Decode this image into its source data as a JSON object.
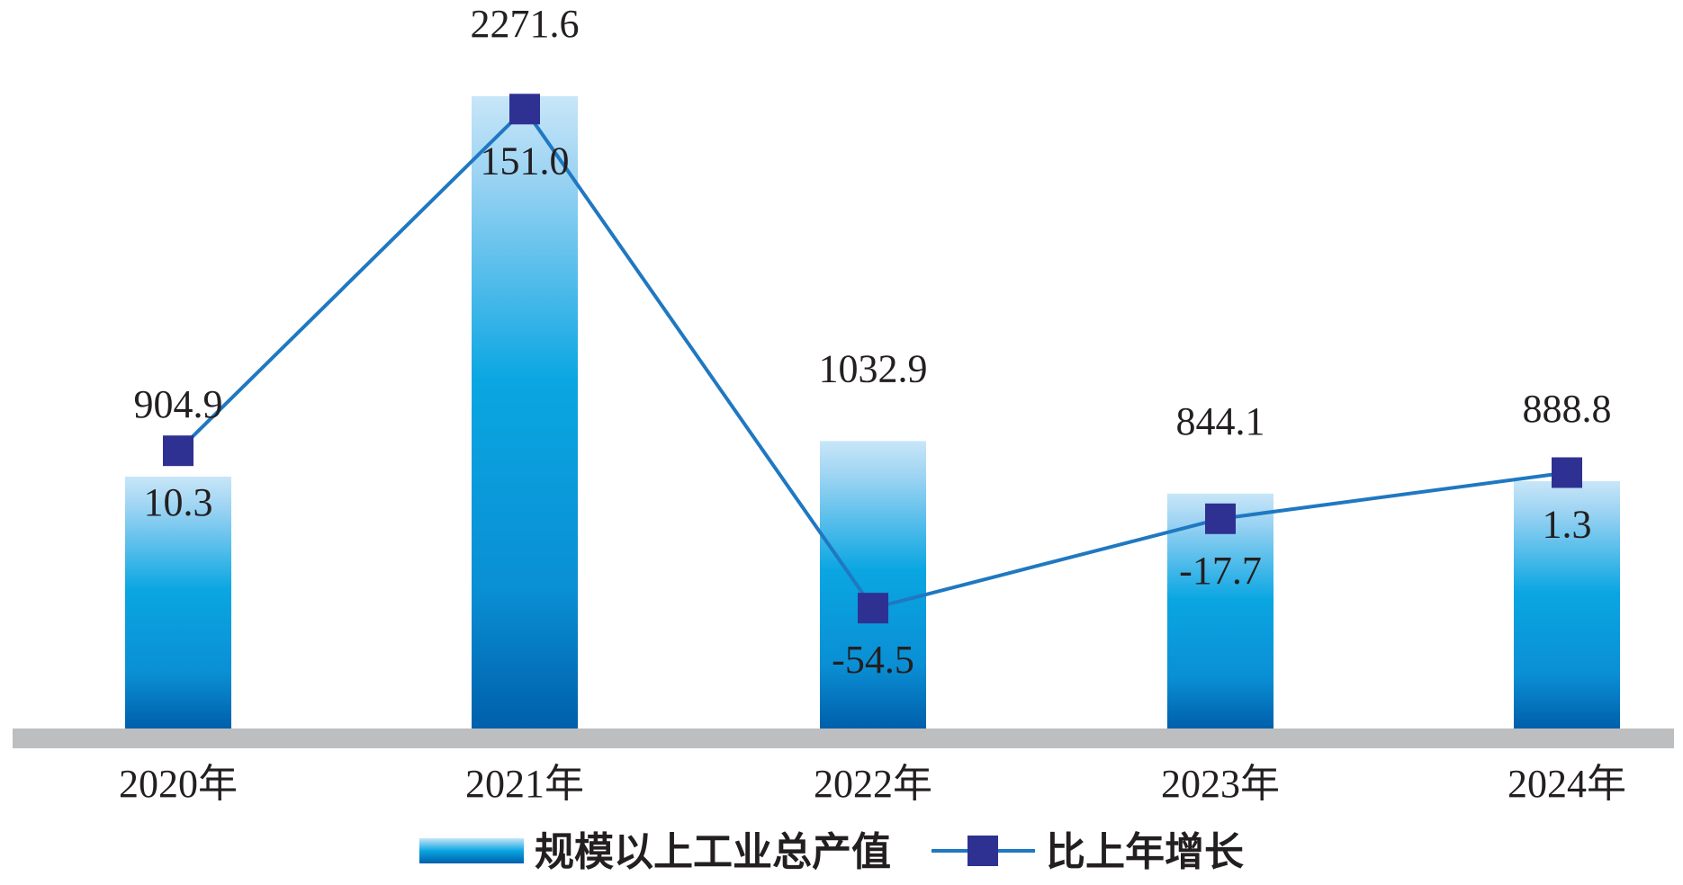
{
  "chart_data": {
    "type": "bar",
    "categories": [
      "2020年",
      "2021年",
      "2022年",
      "2023年",
      "2024年"
    ],
    "series": [
      {
        "name": "规模以上工业总产值",
        "type": "bar",
        "values": [
          904.9,
          2271.6,
          1032.9,
          844.1,
          888.8
        ],
        "labels": [
          "904.9",
          "2271.6",
          "1032.9",
          "844.1",
          "888.8"
        ]
      },
      {
        "name": "比上年增长",
        "type": "line",
        "values": [
          10.3,
          151.0,
          -54.5,
          -17.7,
          1.3
        ],
        "labels": [
          "10.3",
          "151.0",
          "-54.5",
          "-17.7",
          "1.3"
        ]
      }
    ],
    "bar_axis_range": [
      0,
      2271.6
    ],
    "line_axis_range": [
      -80,
      160
    ],
    "grid": false,
    "legend_position": "bottom",
    "colors": {
      "bar_top": "#c4e4f8",
      "bar_mid": "#0aa6e2",
      "bar_bottom": "#0061ad",
      "line": "#1f78c1",
      "marker": "#2e3192",
      "baseline": "#bcbec0"
    }
  }
}
